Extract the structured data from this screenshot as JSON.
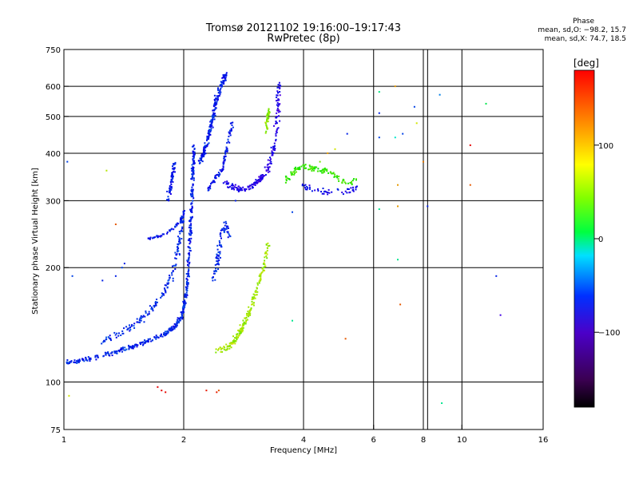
{
  "chart_data": {
    "type": "scatter",
    "title": "Tromsø 20121102 19:16:00–19:17:43",
    "subtitle": "RwPretec (8p)",
    "xlabel": "Frequency [MHz]",
    "ylabel": "Stationary phase Virtual Height [km]",
    "xscale": "log",
    "yscale": "log",
    "xlim": [
      1,
      16
    ],
    "ylim": [
      75,
      750
    ],
    "xticks": [
      1,
      2,
      4,
      6,
      8,
      10,
      16
    ],
    "xtick_labels": [
      "1",
      "2",
      "4",
      "6",
      "8",
      "10",
      "16"
    ],
    "xgrid": [
      2,
      4,
      6,
      8,
      10
    ],
    "xgrid_minor": [
      8.2
    ],
    "yticks": [
      75,
      100,
      200,
      300,
      400,
      500,
      600,
      750
    ],
    "ytick_labels": [
      "75",
      "100",
      "200",
      "300",
      "400",
      "500",
      "600",
      "750"
    ],
    "ygrid": [
      100,
      200,
      300,
      400,
      500,
      600
    ],
    "grid": true,
    "colorbar": {
      "label": "[deg]",
      "range": [
        -180,
        180
      ],
      "ticks": [
        100,
        0,
        -100
      ],
      "tick_labels": [
        "100",
        "0",
        "−100"
      ]
    },
    "phase_stats": {
      "heading": "Phase",
      "line_o": "mean, sd,O: −98.2, 15.7",
      "line_x": "mean, sd,X:  74.7, 18.5"
    },
    "traces": [
      {
        "kind": "curve",
        "pts": [
          [
            1.02,
            113
          ],
          [
            1.1,
            114
          ],
          [
            1.2,
            116
          ],
          [
            1.35,
            120
          ],
          [
            1.5,
            124
          ],
          [
            1.65,
            129
          ],
          [
            1.8,
            134
          ],
          [
            1.9,
            140
          ],
          [
            1.97,
            148
          ],
          [
            2.01,
            160
          ],
          [
            2.04,
            180
          ],
          [
            2.06,
            210
          ],
          [
            2.08,
            250
          ],
          [
            2.1,
            300
          ],
          [
            2.11,
            360
          ],
          [
            2.12,
            420
          ]
        ],
        "phase": -110,
        "n": 480,
        "jx": 0.012,
        "jy": 0.02
      },
      {
        "kind": "curve",
        "pts": [
          [
            1.25,
            128
          ],
          [
            1.4,
            135
          ],
          [
            1.55,
            145
          ],
          [
            1.7,
            160
          ],
          [
            1.8,
            175
          ],
          [
            1.88,
            195
          ],
          [
            1.93,
            220
          ],
          [
            1.97,
            250
          ],
          [
            1.99,
            280
          ]
        ],
        "phase": -108,
        "n": 170,
        "jx": 0.02,
        "jy": 0.03
      },
      {
        "kind": "curve",
        "pts": [
          [
            1.62,
            238
          ],
          [
            1.7,
            240
          ],
          [
            1.8,
            246
          ],
          [
            1.9,
            256
          ],
          [
            1.97,
            268
          ],
          [
            2.02,
            285
          ]
        ],
        "phase": -112,
        "n": 60,
        "jx": 0.008,
        "jy": 0.012
      },
      {
        "kind": "curve",
        "pts": [
          [
            1.82,
            300
          ],
          [
            1.86,
            330
          ],
          [
            1.88,
            360
          ],
          [
            1.9,
            380
          ]
        ],
        "phase": -115,
        "n": 60,
        "jx": 0.015,
        "jy": 0.03
      },
      {
        "kind": "curve",
        "pts": [
          [
            2.2,
            380
          ],
          [
            2.28,
            420
          ],
          [
            2.35,
            480
          ],
          [
            2.4,
            540
          ],
          [
            2.48,
            600
          ],
          [
            2.55,
            640
          ]
        ],
        "phase": -112,
        "n": 200,
        "jx": 0.015,
        "jy": 0.03
      },
      {
        "kind": "curve",
        "pts": [
          [
            2.3,
            320
          ],
          [
            2.4,
            345
          ],
          [
            2.5,
            360
          ],
          [
            2.55,
            400
          ],
          [
            2.6,
            440
          ],
          [
            2.65,
            480
          ]
        ],
        "phase": -115,
        "n": 90,
        "jx": 0.012,
        "jy": 0.025
      },
      {
        "kind": "curve",
        "pts": [
          [
            2.38,
            185
          ],
          [
            2.42,
            200
          ],
          [
            2.45,
            220
          ],
          [
            2.48,
            245
          ],
          [
            2.55,
            260
          ],
          [
            2.62,
            240
          ]
        ],
        "phase": -108,
        "n": 80,
        "jx": 0.02,
        "jy": 0.03
      },
      {
        "kind": "curve",
        "pts": [
          [
            2.55,
            335
          ],
          [
            2.75,
            320
          ],
          [
            2.95,
            325
          ],
          [
            3.1,
            340
          ],
          [
            3.2,
            350
          ],
          [
            3.3,
            380
          ],
          [
            3.4,
            430
          ],
          [
            3.45,
            520
          ],
          [
            3.48,
            620
          ]
        ],
        "phase": -130,
        "n": 200,
        "jx": 0.02,
        "jy": 0.025
      },
      {
        "kind": "curve",
        "pts": [
          [
            3.2,
            440
          ],
          [
            3.23,
            470
          ],
          [
            3.25,
            500
          ],
          [
            3.28,
            520
          ]
        ],
        "phase": 70,
        "n": 45,
        "jx": 0.01,
        "jy": 0.02
      },
      {
        "kind": "curve",
        "pts": [
          [
            2.4,
            120
          ],
          [
            2.6,
            124
          ],
          [
            2.7,
            130
          ],
          [
            2.8,
            138
          ],
          [
            2.9,
            150
          ],
          [
            3.0,
            165
          ],
          [
            3.1,
            185
          ],
          [
            3.2,
            205
          ],
          [
            3.25,
            230
          ]
        ],
        "phase": 75,
        "n": 190,
        "jx": 0.02,
        "jy": 0.025
      },
      {
        "kind": "curve",
        "pts": [
          [
            3.6,
            340
          ],
          [
            3.75,
            355
          ],
          [
            4.0,
            370
          ],
          [
            4.2,
            365
          ],
          [
            4.5,
            360
          ],
          [
            4.8,
            350
          ],
          [
            5.0,
            340
          ],
          [
            5.3,
            330
          ],
          [
            5.5,
            345
          ]
        ],
        "phase": 40,
        "n": 110,
        "jx": 0.02,
        "jy": 0.03
      },
      {
        "kind": "curve",
        "pts": [
          [
            4.0,
            330
          ],
          [
            4.3,
            320
          ],
          [
            4.7,
            315
          ],
          [
            5.2,
            320
          ],
          [
            5.5,
            330
          ]
        ],
        "phase": -120,
        "n": 50,
        "jx": 0.02,
        "jy": 0.03
      }
    ],
    "isolated": [
      [
        1.02,
        380,
        -100
      ],
      [
        1.28,
        360,
        80
      ],
      [
        1.35,
        260,
        140
      ],
      [
        1.35,
        190,
        -110
      ],
      [
        1.4,
        200,
        -100
      ],
      [
        1.42,
        205,
        -110
      ],
      [
        1.25,
        185,
        -110
      ],
      [
        1.05,
        190,
        -100
      ],
      [
        1.72,
        97,
        175
      ],
      [
        1.76,
        95,
        170
      ],
      [
        1.8,
        94,
        165
      ],
      [
        1.03,
        92,
        90
      ],
      [
        2.28,
        95,
        160
      ],
      [
        2.42,
        94,
        160
      ],
      [
        2.45,
        95,
        140
      ],
      [
        2.7,
        300,
        -110
      ],
      [
        3.75,
        280,
        -100
      ],
      [
        3.75,
        145,
        -20
      ],
      [
        5.1,
        130,
        140
      ],
      [
        4.4,
        380,
        60
      ],
      [
        4.6,
        400,
        120
      ],
      [
        4.8,
        410,
        90
      ],
      [
        5.15,
        450,
        -110
      ],
      [
        6.2,
        580,
        -15
      ],
      [
        6.2,
        285,
        -20
      ],
      [
        6.2,
        440,
        -100
      ],
      [
        6.8,
        600,
        120
      ],
      [
        6.8,
        440,
        -40
      ],
      [
        6.9,
        330,
        120
      ],
      [
        6.9,
        290,
        120
      ],
      [
        6.9,
        210,
        -20
      ],
      [
        7.0,
        160,
        140
      ],
      [
        7.6,
        530,
        -100
      ],
      [
        7.7,
        480,
        90
      ],
      [
        8.0,
        380,
        130
      ],
      [
        8.2,
        290,
        -110
      ],
      [
        8.8,
        570,
        -80
      ],
      [
        10.5,
        420,
        180
      ],
      [
        10.5,
        330,
        140
      ],
      [
        11.5,
        540,
        0
      ],
      [
        12.2,
        190,
        -110
      ],
      [
        12.5,
        150,
        -140
      ],
      [
        8.9,
        88,
        -20
      ],
      [
        6.2,
        510,
        -110
      ],
      [
        7.1,
        450,
        -100
      ]
    ]
  }
}
